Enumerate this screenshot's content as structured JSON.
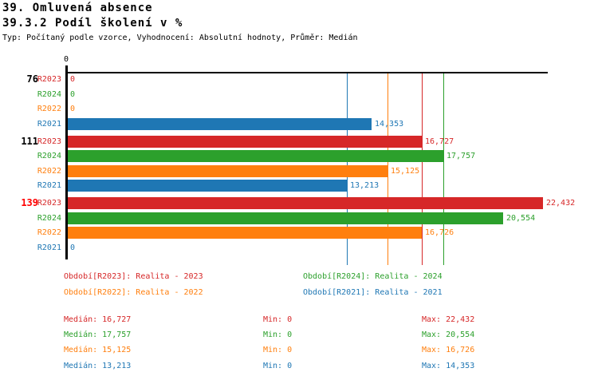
{
  "header": {
    "title": "39. Omluvená absence",
    "subtitle": "39.3.2 Podíl školení v %",
    "meta": "Typ: Počítaný podle vzorce, Vyhodnocení: Absolutní hodnoty, Průměr: Medián"
  },
  "colors": {
    "series": {
      "R2023": "#d62728",
      "R2024": "#2ca02c",
      "R2022": "#ff7f0e",
      "R2021": "#1f77b4"
    },
    "axis": "#000000",
    "highlight_group_label": "#ff0000"
  },
  "chart_data": {
    "type": "bar",
    "orientation": "horizontal",
    "title": "39.3.2 Podíl školení v %",
    "xlabel": "",
    "ylabel": "",
    "xlim": [
      0,
      22.432
    ],
    "axis_tick_label": "0",
    "unit": "%",
    "decimal_separator": ",",
    "grid": false,
    "series_order": [
      "R2023",
      "R2024",
      "R2022",
      "R2021"
    ],
    "groups": [
      {
        "label": "76",
        "label_color": "#000000",
        "bars": [
          {
            "series": "R2023",
            "value": 0,
            "display": "0"
          },
          {
            "series": "R2024",
            "value": 0,
            "display": "0"
          },
          {
            "series": "R2022",
            "value": 0,
            "display": "0"
          },
          {
            "series": "R2021",
            "value": 14.353,
            "display": "14,353"
          }
        ]
      },
      {
        "label": "111",
        "label_color": "#000000",
        "bars": [
          {
            "series": "R2023",
            "value": 16.727,
            "display": "16,727"
          },
          {
            "series": "R2024",
            "value": 17.757,
            "display": "17,757"
          },
          {
            "series": "R2022",
            "value": 15.125,
            "display": "15,125"
          },
          {
            "series": "R2021",
            "value": 13.213,
            "display": "13,213"
          }
        ]
      },
      {
        "label": "139",
        "label_color": "#ff0000",
        "bars": [
          {
            "series": "R2023",
            "value": 22.432,
            "display": "22,432"
          },
          {
            "series": "R2024",
            "value": 20.554,
            "display": "20,554"
          },
          {
            "series": "R2022",
            "value": 16.726,
            "display": "16,726"
          },
          {
            "series": "R2021",
            "value": 0,
            "display": "0"
          }
        ]
      }
    ],
    "median_lines": [
      {
        "series": "R2023",
        "value": 16.727
      },
      {
        "series": "R2024",
        "value": 17.757
      },
      {
        "series": "R2022",
        "value": 15.125
      },
      {
        "series": "R2021",
        "value": 13.213
      }
    ]
  },
  "legend": [
    {
      "series": "R2023",
      "label": "Období[R2023]: Realita - 2023"
    },
    {
      "series": "R2024",
      "label": "Období[R2024]: Realita - 2024"
    },
    {
      "series": "R2022",
      "label": "Období[R2022]: Realita - 2022"
    },
    {
      "series": "R2021",
      "label": "Období[R2021]: Realita - 2021"
    }
  ],
  "stats": {
    "labels": {
      "median": "Medián",
      "min": "Min",
      "max": "Max"
    },
    "rows": [
      {
        "series": "R2023",
        "median": "16,727",
        "min": "0",
        "max": "22,432"
      },
      {
        "series": "R2024",
        "median": "17,757",
        "min": "0",
        "max": "20,554"
      },
      {
        "series": "R2022",
        "median": "15,125",
        "min": "0",
        "max": "16,726"
      },
      {
        "series": "R2021",
        "median": "13,213",
        "min": "0",
        "max": "14,353"
      }
    ]
  }
}
